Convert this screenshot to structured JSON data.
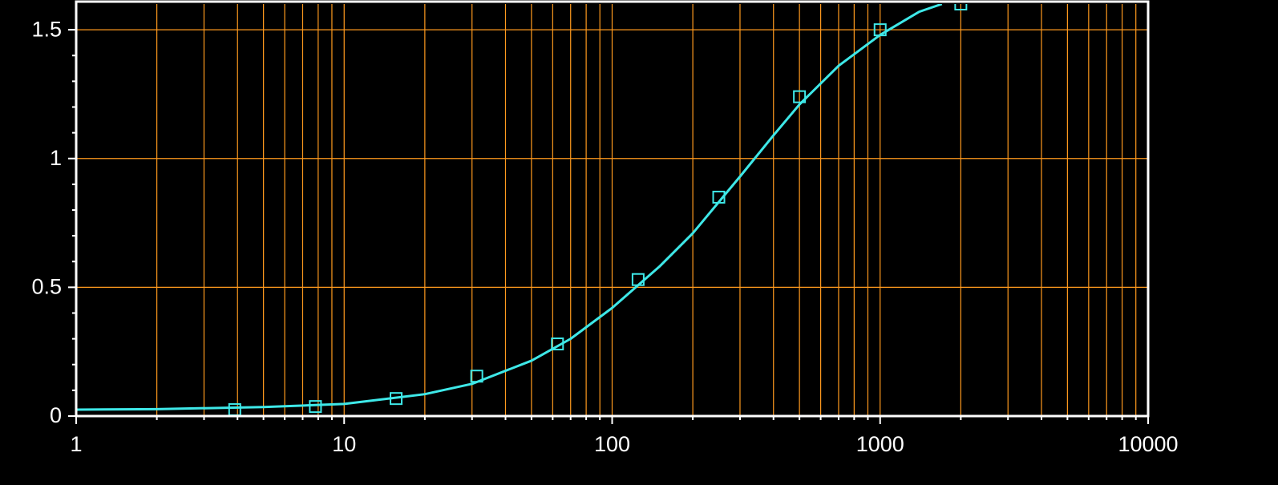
{
  "chart_data": {
    "type": "scatter",
    "xscale": "log",
    "xlim": [
      1,
      10000
    ],
    "xticks": [
      1,
      10,
      100,
      1000,
      10000
    ],
    "x_minor_ticks": [
      2,
      3,
      4,
      5,
      6,
      7,
      8,
      9,
      20,
      30,
      40,
      50,
      60,
      70,
      80,
      90,
      200,
      300,
      400,
      500,
      600,
      700,
      800,
      900,
      2000,
      3000,
      4000,
      5000,
      6000,
      7000,
      8000,
      9000
    ],
    "ylim": [
      0,
      1.6
    ],
    "yticks": [
      0,
      0.5,
      1,
      1.5
    ],
    "y_minor_ticks": [
      0.1,
      0.2,
      0.3,
      0.4,
      0.6,
      0.7,
      0.8,
      0.9,
      1.1,
      1.2,
      1.3,
      1.4
    ],
    "grid": true,
    "grid_color": "#ff9a1e",
    "background": "#000000",
    "axis_color": "#ffffff",
    "points": {
      "color": "#3ee8e8",
      "marker": "square",
      "x": [
        3.90625,
        7.8125,
        15.625,
        31.25,
        62.5,
        125,
        250,
        500,
        1000,
        2000
      ],
      "values": [
        0.025,
        0.037,
        0.068,
        0.155,
        0.28,
        0.53,
        0.85,
        1.24,
        1.5,
        1.6
      ]
    },
    "curve": {
      "color": "#3ee8e8",
      "x": [
        1,
        2,
        5,
        10,
        20,
        30,
        50,
        70,
        100,
        150,
        200,
        300,
        400,
        500,
        700,
        1000,
        1400,
        1700
      ],
      "values": [
        0.025,
        0.027,
        0.035,
        0.047,
        0.085,
        0.125,
        0.215,
        0.3,
        0.42,
        0.58,
        0.71,
        0.93,
        1.09,
        1.21,
        1.36,
        1.48,
        1.57,
        1.6
      ]
    }
  }
}
